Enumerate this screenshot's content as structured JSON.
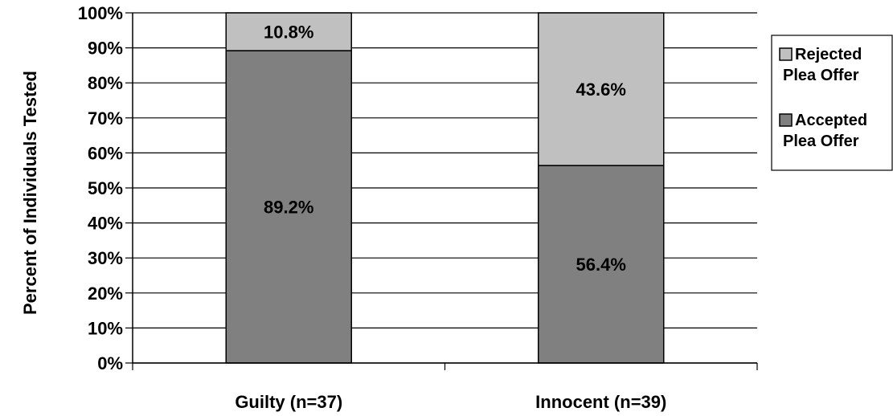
{
  "chart_data": {
    "type": "bar",
    "stacked": true,
    "categories": [
      "Guilty (n=37)",
      "Innocent (n=39)"
    ],
    "series": [
      {
        "name": "Accepted Plea Offer",
        "values": [
          89.2,
          56.4
        ],
        "labels": [
          "89.2%",
          "56.4%"
        ],
        "color": "#808080"
      },
      {
        "name": "Rejected Plea Offer",
        "values": [
          10.8,
          43.6
        ],
        "labels": [
          "10.8%",
          "43.6%"
        ],
        "color": "#c0c0c0"
      }
    ],
    "legend_order": [
      "Rejected Plea Offer",
      "Accepted Plea Offer"
    ],
    "legend_lines": {
      "Rejected Plea Offer": [
        "Rejected",
        "Plea Offer"
      ],
      "Accepted Plea Offer": [
        "Accepted",
        "Plea Offer"
      ]
    },
    "ylabel": "Percent of Individuals Tested",
    "xlabel": "",
    "title": "",
    "ylim": [
      0,
      100
    ],
    "yticks": [
      "0%",
      "10%",
      "20%",
      "30%",
      "40%",
      "50%",
      "60%",
      "70%",
      "80%",
      "90%",
      "100%"
    ],
    "grid": true,
    "legend_position": "right"
  }
}
